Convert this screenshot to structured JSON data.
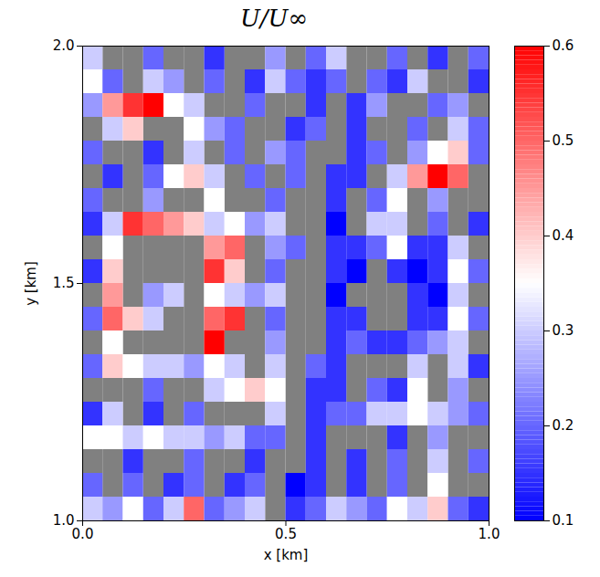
{
  "chart_data": {
    "type": "heatmap",
    "title": "U/U∞",
    "x_label": "x [km]",
    "y_label": "y [km]",
    "xlim": [
      0,
      1
    ],
    "ylim": [
      1,
      2
    ],
    "xticks": [
      {
        "value": 0,
        "label": "0.0"
      },
      0.5,
      {
        "value": 1,
        "label": "1.0"
      }
    ],
    "yticks": [
      {
        "value": 1,
        "label": "1.0"
      },
      1.5,
      {
        "value": 2,
        "label": "2.0"
      }
    ],
    "x": [
      0.025,
      0.075,
      0.125,
      0.175,
      0.225,
      0.275,
      0.325,
      0.375,
      0.425,
      0.475,
      0.525,
      0.575,
      0.625,
      0.675,
      0.725,
      0.775,
      0.825,
      0.875,
      0.925,
      0.975
    ],
    "y": [
      1.975,
      1.925,
      1.875,
      1.825,
      1.775,
      1.725,
      1.675,
      1.625,
      1.575,
      1.525,
      1.475,
      1.425,
      1.375,
      1.325,
      1.275,
      1.225,
      1.175,
      1.125,
      1.075,
      1.025
    ],
    "values": [
      [
        0.3,
        null,
        null,
        0.2,
        null,
        null,
        0.15,
        null,
        null,
        0.25,
        null,
        0.2,
        0.3,
        null,
        null,
        0.2,
        null,
        0.15,
        null,
        0.2
      ],
      [
        0.35,
        0.2,
        null,
        0.3,
        0.25,
        null,
        0.2,
        null,
        0.15,
        0.3,
        0.2,
        0.15,
        0.2,
        null,
        0.2,
        0.15,
        0.3,
        null,
        null,
        0.15
      ],
      [
        0.25,
        0.45,
        0.55,
        0.6,
        0.35,
        0.3,
        null,
        null,
        0.2,
        null,
        null,
        0.15,
        null,
        0.15,
        0.25,
        null,
        null,
        0.2,
        0.25,
        null
      ],
      [
        null,
        0.3,
        0.4,
        null,
        null,
        0.35,
        0.25,
        0.2,
        null,
        null,
        0.15,
        0.2,
        null,
        0.15,
        null,
        null,
        0.2,
        null,
        0.3,
        0.2
      ],
      [
        0.2,
        null,
        null,
        0.15,
        null,
        0.3,
        null,
        0.2,
        null,
        0.25,
        0.2,
        null,
        null,
        0.15,
        0.2,
        null,
        0.25,
        0.35,
        0.4,
        0.2
      ],
      [
        null,
        0.15,
        null,
        0.2,
        0.35,
        0.4,
        0.3,
        null,
        0.2,
        null,
        0.2,
        null,
        0.15,
        0.15,
        null,
        0.3,
        0.45,
        0.6,
        0.5,
        null
      ],
      [
        0.2,
        null,
        null,
        0.25,
        null,
        null,
        0.35,
        null,
        null,
        0.2,
        null,
        null,
        0.15,
        null,
        0.2,
        0.35,
        null,
        0.25,
        null,
        null
      ],
      [
        0.15,
        0.3,
        0.55,
        0.5,
        0.45,
        0.4,
        0.3,
        0.35,
        0.25,
        0.3,
        null,
        null,
        0.1,
        null,
        0.3,
        0.3,
        null,
        0.2,
        null,
        0.15
      ],
      [
        null,
        0.35,
        null,
        null,
        null,
        null,
        0.45,
        0.5,
        null,
        0.25,
        0.2,
        null,
        0.15,
        0.15,
        0.2,
        0.35,
        0.15,
        0.15,
        0.3,
        null
      ],
      [
        0.15,
        0.4,
        null,
        null,
        null,
        null,
        0.55,
        0.4,
        null,
        0.2,
        null,
        null,
        0.15,
        0.1,
        null,
        0.15,
        0.1,
        0.15,
        0.35,
        0.2
      ],
      [
        null,
        0.45,
        null,
        0.25,
        0.3,
        null,
        0.35,
        0.3,
        0.25,
        0.3,
        null,
        null,
        0.1,
        null,
        null,
        null,
        0.15,
        0.1,
        0.3,
        null
      ],
      [
        0.2,
        0.5,
        0.4,
        0.3,
        null,
        null,
        0.5,
        0.55,
        null,
        0.2,
        null,
        null,
        0.15,
        0.15,
        null,
        null,
        0.15,
        0.15,
        0.35,
        0.2
      ],
      [
        null,
        0.35,
        null,
        null,
        null,
        null,
        0.6,
        null,
        null,
        0.25,
        null,
        null,
        0.15,
        0.2,
        0.15,
        0.15,
        0.2,
        0.25,
        0.3,
        null
      ],
      [
        0.2,
        0.4,
        0.35,
        0.3,
        0.3,
        0.25,
        0.35,
        0.3,
        null,
        0.3,
        null,
        0.2,
        0.15,
        null,
        null,
        null,
        0.3,
        null,
        0.3,
        0.15
      ],
      [
        null,
        null,
        null,
        0.2,
        null,
        null,
        0.3,
        0.35,
        0.4,
        0.35,
        null,
        0.15,
        0.15,
        null,
        0.2,
        0.15,
        0.35,
        null,
        0.25,
        null
      ],
      [
        0.15,
        0.3,
        null,
        0.15,
        null,
        0.2,
        null,
        null,
        null,
        0.3,
        null,
        0.15,
        0.2,
        0.2,
        0.3,
        0.3,
        0.35,
        0.3,
        0.25,
        0.2
      ],
      [
        0.35,
        0.35,
        0.3,
        0.35,
        0.3,
        0.3,
        0.25,
        0.3,
        0.2,
        0.2,
        null,
        0.15,
        null,
        null,
        null,
        0.15,
        null,
        0.25,
        null,
        null
      ],
      [
        null,
        null,
        0.15,
        null,
        null,
        0.2,
        null,
        null,
        0.15,
        null,
        null,
        0.15,
        null,
        0.15,
        null,
        0.2,
        null,
        0.3,
        null,
        0.2
      ],
      [
        0.2,
        null,
        0.2,
        null,
        0.15,
        0.2,
        null,
        0.15,
        0.2,
        null,
        0.1,
        0.15,
        null,
        0.15,
        null,
        0.2,
        null,
        0.35,
        null,
        null
      ],
      [
        0.3,
        0.25,
        0.35,
        0.2,
        0.3,
        0.5,
        0.2,
        0.25,
        0.3,
        null,
        0.15,
        0.2,
        0.3,
        0.25,
        0.2,
        0.35,
        0.3,
        0.4,
        0.2,
        0.15
      ]
    ],
    "colorbar": {
      "range": [
        0.1,
        0.6
      ],
      "ticks": [
        0.1,
        0.2,
        0.3,
        0.4,
        0.5,
        0.6
      ]
    }
  }
}
